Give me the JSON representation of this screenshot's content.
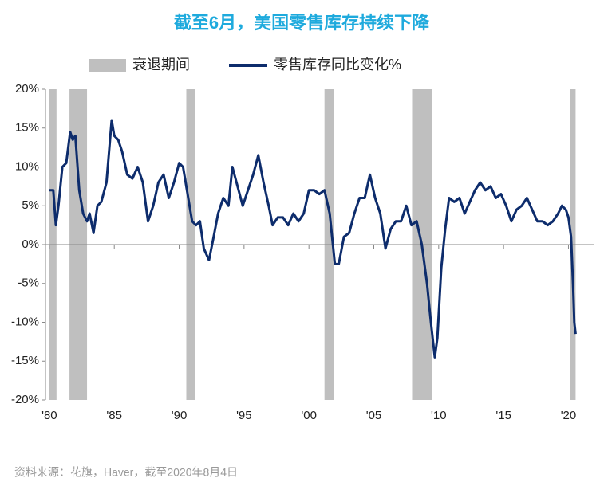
{
  "chart_data": {
    "type": "line",
    "title": "截至6月，美国零售库存持续下降",
    "source": "资料来源：花旗，Haver，截至2020年8月4日",
    "shading": {
      "name": "衰退期间",
      "color": "#bfbfbf",
      "ranges": [
        [
          1980.0,
          1980.55
        ],
        [
          1981.55,
          1982.9
        ],
        [
          1990.55,
          1991.2
        ],
        [
          2001.2,
          2001.9
        ],
        [
          2007.95,
          2009.5
        ],
        [
          2020.1,
          2020.55
        ]
      ]
    },
    "x": [
      1980.0,
      1980.3,
      1980.5,
      1980.7,
      1981.0,
      1981.3,
      1981.6,
      1981.8,
      1982.0,
      1982.3,
      1982.6,
      1982.9,
      1983.1,
      1983.4,
      1983.7,
      1984.0,
      1984.4,
      1984.8,
      1985.0,
      1985.3,
      1985.6,
      1986.0,
      1986.4,
      1986.8,
      1987.2,
      1987.6,
      1988.0,
      1988.4,
      1988.8,
      1989.2,
      1989.6,
      1990.0,
      1990.3,
      1990.7,
      1991.0,
      1991.3,
      1991.6,
      1991.9,
      1992.3,
      1992.6,
      1993.0,
      1993.4,
      1993.8,
      1994.1,
      1994.5,
      1994.9,
      1995.3,
      1995.7,
      1996.1,
      1996.5,
      1996.9,
      1997.2,
      1997.6,
      1998.0,
      1998.4,
      1998.8,
      1999.2,
      1999.6,
      2000.0,
      2000.4,
      2000.8,
      2001.2,
      2001.6,
      2002.0,
      2002.3,
      2002.7,
      2003.1,
      2003.5,
      2003.9,
      2004.3,
      2004.7,
      2005.1,
      2005.5,
      2005.9,
      2006.3,
      2006.7,
      2007.1,
      2007.5,
      2007.9,
      2008.3,
      2008.7,
      2009.1,
      2009.4,
      2009.7,
      2009.9,
      2010.2,
      2010.5,
      2010.8,
      2011.2,
      2011.6,
      2012.0,
      2012.4,
      2012.8,
      2013.2,
      2013.6,
      2014.0,
      2014.4,
      2014.8,
      2015.2,
      2015.6,
      2016.0,
      2016.4,
      2016.8,
      2017.2,
      2017.6,
      2018.0,
      2018.4,
      2018.8,
      2019.2,
      2019.5,
      2019.8,
      2020.0,
      2020.2,
      2020.35,
      2020.45,
      2020.55
    ],
    "series": [
      {
        "name": "零售库存同比变化%",
        "color": "#0d2c6c",
        "values": [
          7,
          7,
          2.5,
          5,
          10,
          10.5,
          14.5,
          13.5,
          14,
          7,
          4,
          3,
          4,
          1.5,
          5,
          5.5,
          8,
          16,
          14,
          13.5,
          12,
          9,
          8.5,
          10,
          8,
          3,
          5,
          8,
          9,
          6,
          8,
          10.5,
          10,
          6,
          3,
          2.5,
          3,
          -0.5,
          -2,
          0.5,
          4,
          6,
          5,
          10,
          7.5,
          5,
          7,
          9,
          11.5,
          8,
          5,
          2.5,
          3.5,
          3.5,
          2.5,
          4,
          3,
          4,
          7,
          7,
          6.5,
          7,
          4,
          -2.5,
          -2.5,
          1,
          1.5,
          4,
          6,
          6,
          9,
          6,
          4,
          -0.5,
          2,
          3,
          3,
          5,
          2.5,
          3,
          0,
          -5,
          -10,
          -14.5,
          -12,
          -3,
          2,
          6,
          5.5,
          6,
          4,
          5.5,
          7,
          8,
          7,
          7.5,
          6,
          6.5,
          5,
          3,
          4.5,
          5,
          6,
          4.5,
          3,
          3,
          2.5,
          3,
          4,
          5,
          4.5,
          3.5,
          1,
          -5,
          -10,
          -11.5
        ]
      }
    ],
    "xlim": [
      1979.7,
      2022.0
    ],
    "xticks": [
      {
        "value": 1980,
        "label": "'80"
      },
      {
        "value": 1985,
        "label": "'85"
      },
      {
        "value": 1990,
        "label": "'90"
      },
      {
        "value": 1995,
        "label": "'95"
      },
      {
        "value": 2000,
        "label": "'00"
      },
      {
        "value": 2005,
        "label": "'05"
      },
      {
        "value": 2010,
        "label": "'10"
      },
      {
        "value": 2015,
        "label": "'15"
      },
      {
        "value": 2020,
        "label": "'20"
      }
    ],
    "ylim": [
      -20,
      20
    ],
    "yticks": [
      {
        "value": -20,
        "label": "-20%"
      },
      {
        "value": -15,
        "label": "-15%"
      },
      {
        "value": -10,
        "label": "-10%"
      },
      {
        "value": -5,
        "label": "-5%"
      },
      {
        "value": 0,
        "label": "0%"
      },
      {
        "value": 5,
        "label": "5%"
      },
      {
        "value": 10,
        "label": "10%"
      },
      {
        "value": 15,
        "label": "15%"
      },
      {
        "value": 20,
        "label": "20%"
      }
    ]
  }
}
